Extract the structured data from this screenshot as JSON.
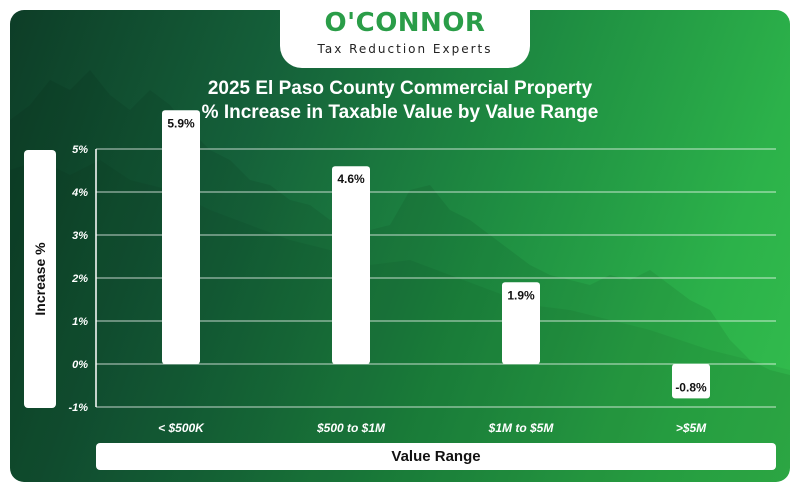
{
  "logo": {
    "word": "O'CONNOR",
    "tagline": "Tax Reduction Experts"
  },
  "chart_data": {
    "type": "bar",
    "title_line1": "2025 El Paso County Commercial Property",
    "title_line2": "% Increase in Taxable Value by Value Range",
    "xlabel": "Value Range",
    "ylabel": "Increase %",
    "categories": [
      "< $500K",
      "$500 to $1M",
      "$1M to $5M",
      ">$5M"
    ],
    "values": [
      5.9,
      4.6,
      1.9,
      -0.8
    ],
    "value_labels": [
      "5.9%",
      "4.6%",
      "1.9%",
      "-0.8%"
    ],
    "y_ticks": [
      5,
      4,
      3,
      2,
      1,
      0,
      -1
    ],
    "y_tick_labels": [
      "5%",
      "4%",
      "3%",
      "2%",
      "1%",
      "0%",
      "-1%"
    ],
    "ylim": [
      -1,
      5
    ],
    "grid": true,
    "colors": {
      "bar": "#ffffff",
      "background_dark": "#0d3d27",
      "background_light": "#33bd4d",
      "brand": "#2a9d48"
    }
  }
}
